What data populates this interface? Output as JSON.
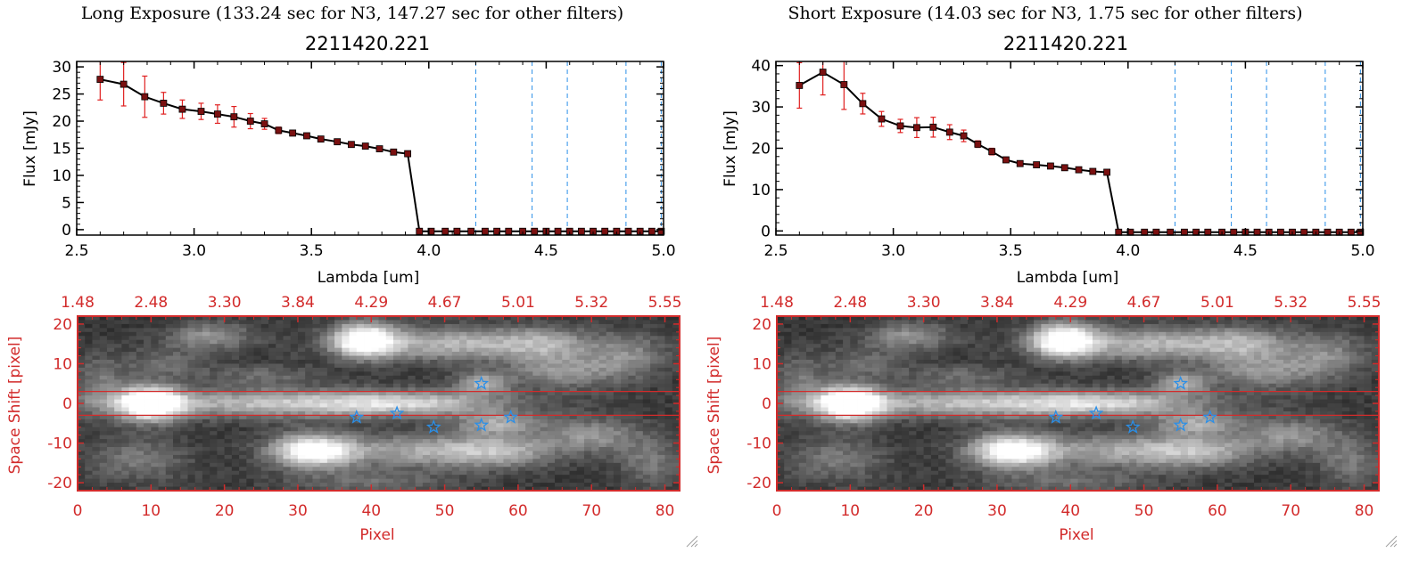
{
  "colors": {
    "axis_black": "#000000",
    "spec_line": "#000000",
    "marker": "#7a1010",
    "error_bar": "#e02020",
    "vline": "#2a8fe8",
    "img_axis": "#d22b2b",
    "star": "#2a8fe8",
    "aperture": "#d22b2b"
  },
  "chart_data": [
    {
      "type": "line",
      "title": "Long Exposure (133.24 sec for N3, 147.27 sec for other filters)",
      "subtitle": "2211420.221",
      "xlabel": "Lambda [um]",
      "ylabel": "Flux [mJy]",
      "xlim": [
        2.5,
        5.0
      ],
      "ylim": [
        -1,
        31
      ],
      "xticks": [
        "2.5",
        "3.0",
        "3.5",
        "4.0",
        "4.5",
        "5.0"
      ],
      "xtick_values": [
        2.5,
        3.0,
        3.5,
        4.0,
        4.5,
        5.0
      ],
      "yticks": [
        "0",
        "5",
        "10",
        "15",
        "20",
        "25",
        "30"
      ],
      "ytick_values": [
        0,
        5,
        10,
        15,
        20,
        25,
        30
      ],
      "series": [
        {
          "name": "flux",
          "x": [
            2.6,
            2.7,
            2.79,
            2.87,
            2.95,
            3.03,
            3.1,
            3.17,
            3.24,
            3.3,
            3.36,
            3.42,
            3.48,
            3.54,
            3.61,
            3.67,
            3.73,
            3.79,
            3.85,
            3.91,
            3.96,
            4.01,
            4.07,
            4.12,
            4.18,
            4.24,
            4.29,
            4.34,
            4.4,
            4.45,
            4.5,
            4.55,
            4.6,
            4.65,
            4.7,
            4.75,
            4.8,
            4.85,
            4.9,
            4.95,
            4.99
          ],
          "values": [
            27.7,
            26.8,
            24.5,
            23.3,
            22.2,
            21.8,
            21.3,
            20.8,
            20.0,
            19.5,
            18.3,
            17.8,
            17.3,
            16.7,
            16.2,
            15.7,
            15.4,
            14.9,
            14.3,
            14.0,
            -0.3,
            -0.3,
            -0.3,
            -0.3,
            -0.3,
            -0.3,
            -0.3,
            -0.3,
            -0.3,
            -0.3,
            -0.3,
            -0.3,
            -0.3,
            -0.3,
            -0.3,
            -0.3,
            -0.3,
            -0.3,
            -0.3,
            -0.3,
            -0.3
          ],
          "errors": [
            3.8,
            4.0,
            3.8,
            2.0,
            1.7,
            1.5,
            1.7,
            1.9,
            1.4,
            1.0,
            0.6,
            0.5,
            0.4,
            0.3,
            0.3,
            0.3,
            0.3,
            0.3,
            0.3,
            0.3,
            0,
            0,
            0,
            0,
            0,
            0,
            0,
            0,
            0,
            0,
            0,
            0,
            0,
            0,
            0,
            0,
            0,
            0,
            0,
            0,
            0
          ]
        }
      ],
      "vlines": [
        4.2,
        4.44,
        4.59,
        4.84,
        4.99
      ]
    },
    {
      "type": "line",
      "title": "Short Exposure (14.03 sec for N3, 1.75 sec for other filters)",
      "subtitle": "2211420.221",
      "xlabel": "Lambda [um]",
      "ylabel": "Flux [mJy]",
      "xlim": [
        2.5,
        5.0
      ],
      "ylim": [
        -1,
        41
      ],
      "xticks": [
        "2.5",
        "3.0",
        "3.5",
        "4.0",
        "4.5",
        "5.0"
      ],
      "xtick_values": [
        2.5,
        3.0,
        3.5,
        4.0,
        4.5,
        5.0
      ],
      "yticks": [
        "0",
        "10",
        "20",
        "30",
        "40"
      ],
      "ytick_values": [
        0,
        10,
        20,
        30,
        40
      ],
      "series": [
        {
          "name": "flux",
          "x": [
            2.6,
            2.7,
            2.79,
            2.87,
            2.95,
            3.03,
            3.1,
            3.17,
            3.24,
            3.3,
            3.36,
            3.42,
            3.48,
            3.54,
            3.61,
            3.67,
            3.73,
            3.79,
            3.85,
            3.91,
            3.96,
            4.01,
            4.07,
            4.12,
            4.18,
            4.24,
            4.29,
            4.34,
            4.4,
            4.45,
            4.5,
            4.55,
            4.6,
            4.65,
            4.7,
            4.75,
            4.8,
            4.85,
            4.9,
            4.95,
            4.99
          ],
          "values": [
            35.2,
            38.4,
            35.4,
            30.8,
            27.1,
            25.4,
            25.0,
            25.1,
            23.9,
            23.0,
            21.0,
            19.2,
            17.2,
            16.3,
            16.0,
            15.7,
            15.3,
            14.8,
            14.4,
            14.2,
            -0.3,
            -0.3,
            -0.3,
            -0.3,
            -0.3,
            -0.3,
            -0.3,
            -0.3,
            -0.3,
            -0.3,
            -0.3,
            -0.3,
            -0.3,
            -0.3,
            -0.3,
            -0.3,
            -0.3,
            -0.3,
            -0.3,
            -0.3,
            -0.3
          ],
          "errors": [
            5.5,
            5.5,
            6.0,
            2.5,
            1.8,
            1.6,
            2.4,
            2.4,
            1.8,
            1.4,
            0.8,
            0.8,
            0.5,
            0.4,
            0.4,
            0.4,
            0.4,
            0.3,
            0.3,
            0.3,
            0,
            0,
            0,
            0,
            0,
            0,
            0,
            0,
            0,
            0,
            0,
            0,
            0,
            0,
            0,
            0,
            0,
            0,
            0,
            0,
            0
          ]
        }
      ],
      "vlines": [
        4.2,
        4.44,
        4.59,
        4.84,
        4.99
      ]
    },
    {
      "type": "heatmap",
      "xlabel": "Pixel",
      "ylabel": "Space Shift [pixel]",
      "xlim": [
        0,
        82
      ],
      "ylim": [
        -22,
        22
      ],
      "xticks": [
        "0",
        "10",
        "20",
        "30",
        "40",
        "50",
        "60",
        "70",
        "80"
      ],
      "xtick_values": [
        0,
        10,
        20,
        30,
        40,
        50,
        60,
        70,
        80
      ],
      "yticks": [
        "20",
        "10",
        "0",
        "-10",
        "-20"
      ],
      "ytick_values": [
        20,
        10,
        0,
        -10,
        -20
      ],
      "top_ticks": [
        "1.48",
        "2.48",
        "3.30",
        "3.84",
        "4.29",
        "4.67",
        "5.01",
        "5.32",
        "5.55"
      ],
      "aperture": [
        3,
        -3
      ],
      "stars": [
        {
          "x": 55,
          "y": 5
        },
        {
          "x": 38,
          "y": -3.5
        },
        {
          "x": 43.5,
          "y": -2.5
        },
        {
          "x": 48.5,
          "y": -6
        },
        {
          "x": 55,
          "y": -5.5
        },
        {
          "x": 59,
          "y": -3.5
        }
      ],
      "blobs": [
        {
          "x": 10,
          "y": 0,
          "sx": 3,
          "sy": 3,
          "a": 1.0
        },
        {
          "x": 30,
          "y": 0,
          "sx": 18,
          "sy": 2.5,
          "a": 0.55
        },
        {
          "x": 45,
          "y": 0,
          "sx": 8,
          "sy": 2,
          "a": 0.28
        },
        {
          "x": 39,
          "y": 16,
          "sx": 3,
          "sy": 3,
          "a": 0.9
        },
        {
          "x": 52,
          "y": 15,
          "sx": 10,
          "sy": 3,
          "a": 0.5
        },
        {
          "x": 18,
          "y": 17,
          "sx": 4,
          "sy": 2.5,
          "a": 0.35
        },
        {
          "x": 32,
          "y": -12,
          "sx": 4,
          "sy": 3,
          "a": 0.85
        },
        {
          "x": 48,
          "y": -12,
          "sx": 9,
          "sy": 3,
          "a": 0.45
        },
        {
          "x": 58,
          "y": -12,
          "sx": 5,
          "sy": 3,
          "a": 0.3
        },
        {
          "x": 55,
          "y": 5,
          "sx": 2.5,
          "sy": 2,
          "a": 0.45
        },
        {
          "x": 57,
          "y": -5,
          "sx": 4,
          "sy": 2,
          "a": 0.4
        },
        {
          "x": 66,
          "y": 8,
          "sx": 5,
          "sy": 3,
          "a": 0.35
        },
        {
          "x": 75,
          "y": 12,
          "sx": 4,
          "sy": 4,
          "a": 0.3
        },
        {
          "x": 70,
          "y": -8,
          "sx": 5,
          "sy": 3,
          "a": 0.35
        },
        {
          "x": 78,
          "y": -15,
          "sx": 3,
          "sy": 4,
          "a": 0.25
        },
        {
          "x": 8,
          "y": -14,
          "sx": 5,
          "sy": 4,
          "a": 0.25
        },
        {
          "x": 12,
          "y": 10,
          "sx": 4,
          "sy": 3,
          "a": 0.2
        },
        {
          "x": 64,
          "y": 15,
          "sx": 4,
          "sy": 3,
          "a": 0.25
        },
        {
          "x": 40,
          "y": -20,
          "sx": 8,
          "sy": 2,
          "a": 0.2
        },
        {
          "x": 25,
          "y": 7,
          "sx": 5,
          "sy": 2,
          "a": 0.2
        },
        {
          "x": 3,
          "y": 5,
          "sx": 2.5,
          "sy": 5,
          "a": 0.25
        }
      ]
    }
  ]
}
